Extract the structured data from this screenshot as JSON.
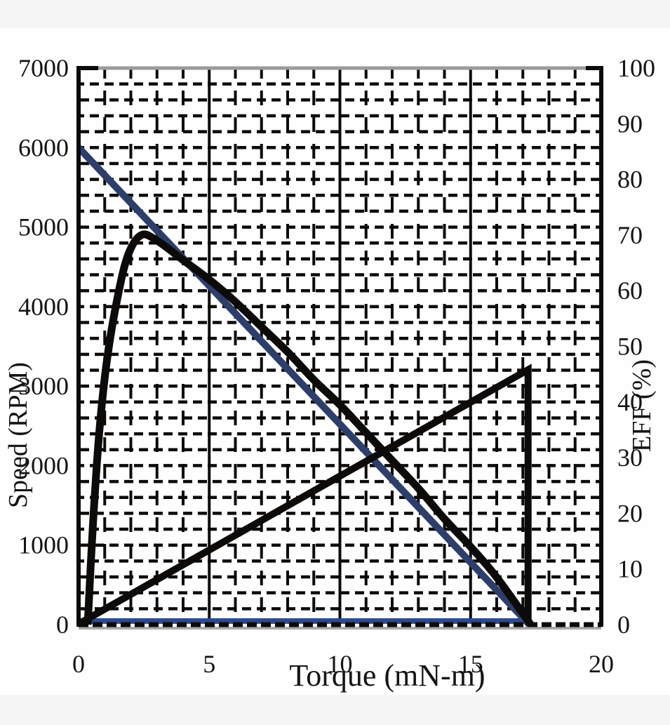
{
  "figure": {
    "outer_background": "#f5f5f6",
    "panel_background": "#fefefe",
    "frame_top_color": "#9b9b9b",
    "frame_color": "#0d0b09"
  },
  "chart_data": {
    "type": "line",
    "title": "",
    "xlabel": "Torque (mN-m)",
    "ylabel_left": "Speed (RPM)",
    "ylabel_right": "EFF (%)",
    "x_axis": {
      "min": 0,
      "max": 20,
      "ticks": [
        0,
        5,
        10,
        15,
        20
      ]
    },
    "y_axis_left": {
      "min": 0,
      "max": 7000,
      "ticks": [
        0,
        1000,
        2000,
        3000,
        4000,
        5000,
        6000,
        7000
      ]
    },
    "y_axis_right": {
      "min": 0,
      "max": 100,
      "ticks": [
        0,
        10,
        20,
        30,
        40,
        50,
        60,
        70,
        80,
        90,
        100
      ]
    },
    "grid": {
      "style": "dashed",
      "color": "#0d0b09",
      "x_minor_step": 1,
      "x_solid_lines": [
        5,
        10,
        15
      ],
      "y_divisions": 35
    },
    "legend": "none",
    "series": [
      {
        "name": "speed-line",
        "description": "speed vs torque (blue straight line, left axis)",
        "axis": "left",
        "color": "#2d3e6b",
        "width": 10,
        "smooth": false,
        "points": [
          [
            0,
            6000
          ],
          [
            17.25,
            0
          ]
        ]
      },
      {
        "name": "speed-baseline",
        "description": "blue segment along zero line",
        "axis": "left",
        "color": "#2d4a8f",
        "width": 8,
        "smooth": false,
        "points": [
          [
            0,
            45
          ],
          [
            17.3,
            45
          ]
        ]
      },
      {
        "name": "efficiency-curve",
        "description": "efficiency vs torque (black curve, right axis), peak ~70% near 2.4 mN-m",
        "axis": "right",
        "color": "#0d0b09",
        "width": 11,
        "smooth": true,
        "points": [
          [
            0.35,
            0
          ],
          [
            0.55,
            18
          ],
          [
            0.8,
            35
          ],
          [
            1.1,
            48
          ],
          [
            1.5,
            59
          ],
          [
            1.9,
            66.5
          ],
          [
            2.4,
            70
          ],
          [
            3.0,
            69
          ],
          [
            4,
            65.5
          ],
          [
            5,
            62
          ],
          [
            6,
            58
          ],
          [
            7,
            53.5
          ],
          [
            8,
            49
          ],
          [
            9,
            44
          ],
          [
            10,
            39.5
          ],
          [
            11,
            34.5
          ],
          [
            12,
            29.5
          ],
          [
            13,
            24.5
          ],
          [
            14,
            19
          ],
          [
            15,
            14
          ],
          [
            16,
            8.5
          ],
          [
            17.3,
            0
          ]
        ]
      },
      {
        "name": "rising-line",
        "description": "black straight line rising from origin to ~46% at stall torque ~17.2 mN-m, then vertical drop",
        "axis": "right",
        "color": "#0d0b09",
        "width": 10,
        "smooth": false,
        "points": [
          [
            0.1,
            0.4
          ],
          [
            17.2,
            45.8
          ],
          [
            17.2,
            0.4
          ]
        ]
      }
    ]
  }
}
